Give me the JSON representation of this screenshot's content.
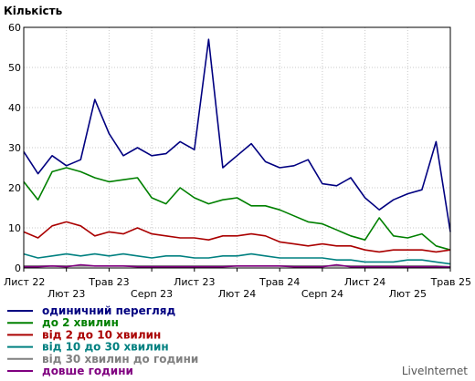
{
  "chart_data": {
    "type": "line",
    "ylabel": "Кількість",
    "ylim": [
      0,
      60
    ],
    "yticks": [
      0,
      10,
      20,
      30,
      40,
      50,
      60
    ],
    "grid": true,
    "x_tick_labels": [
      "Лист 22",
      "Лют 23",
      "Трав 23",
      "Серп 23",
      "Лист 23",
      "Лют 24",
      "Трав 24",
      "Серп 24",
      "Лист 24",
      "Лют 25",
      "Трав 25"
    ],
    "x_tick_positions": [
      0,
      3,
      6,
      9,
      12,
      15,
      18,
      21,
      24,
      27,
      30
    ],
    "x_count": 31,
    "series": [
      {
        "name": "одиничний перегляд",
        "color": "#000080",
        "values": [
          29,
          23.5,
          28,
          25.5,
          27,
          42,
          33.5,
          28,
          30,
          28,
          28.5,
          31.5,
          29.5,
          57,
          25,
          28,
          31,
          26.5,
          25,
          25.5,
          27,
          21,
          20.5,
          22.5,
          17.5,
          14.5,
          17,
          18.5,
          19.5,
          31.5,
          9
        ]
      },
      {
        "name": "до 2 хвилин",
        "color": "#008000",
        "values": [
          21.5,
          17,
          24,
          25,
          24,
          22.5,
          21.5,
          22,
          22.5,
          17.5,
          16,
          20,
          17.5,
          16,
          17,
          17.5,
          15.5,
          15.5,
          14.5,
          13,
          11.5,
          11,
          9.5,
          8,
          7,
          12.5,
          8,
          7.5,
          8.5,
          5.5,
          4.5
        ]
      },
      {
        "name": "від 2 до 10 хвилин",
        "color": "#aa0000",
        "values": [
          9,
          7.5,
          10.5,
          11.5,
          10.5,
          8,
          9,
          8.5,
          10,
          8.5,
          8,
          7.5,
          7.5,
          7,
          8,
          8,
          8.5,
          8,
          6.5,
          6,
          5.5,
          6,
          5.5,
          5.5,
          4.5,
          4,
          4.5,
          4.5,
          4.5,
          4,
          4.5
        ]
      },
      {
        "name": "від 10 до 30 хвилин",
        "color": "#008080",
        "values": [
          3.5,
          2.5,
          3,
          3.5,
          3,
          3.5,
          3,
          3.5,
          3,
          2.5,
          3,
          3,
          2.5,
          2.5,
          3,
          3,
          3.5,
          3,
          2.5,
          2.5,
          2.5,
          2.5,
          2,
          2,
          1.5,
          1.5,
          1.5,
          2,
          2,
          1.5,
          1
        ]
      },
      {
        "name": "від 30 хвилин до години",
        "color": "#808080",
        "values": [
          0.5,
          0.5,
          0.5,
          0.5,
          0.5,
          0.5,
          0.5,
          0.5,
          0.5,
          0.5,
          0.5,
          0.5,
          0.5,
          0.5,
          0.5,
          0.5,
          0.5,
          0.5,
          0.5,
          0.5,
          0.5,
          0.5,
          0.5,
          0.5,
          0.5,
          0.5,
          0.5,
          0.5,
          0.5,
          0.5,
          0.3
        ]
      },
      {
        "name": "довше години",
        "color": "#800080",
        "values": [
          0.3,
          0.3,
          0.5,
          0.3,
          0.8,
          0.5,
          0.5,
          0.5,
          0.3,
          0.3,
          0.3,
          0.3,
          0.3,
          0.3,
          0.3,
          0.5,
          0.5,
          0.5,
          0.5,
          0.3,
          0.3,
          0.3,
          0.8,
          0.3,
          0.3,
          0.3,
          0.3,
          0.3,
          0.3,
          0.3,
          0.2
        ]
      }
    ]
  },
  "watermark": "LiveInternet"
}
